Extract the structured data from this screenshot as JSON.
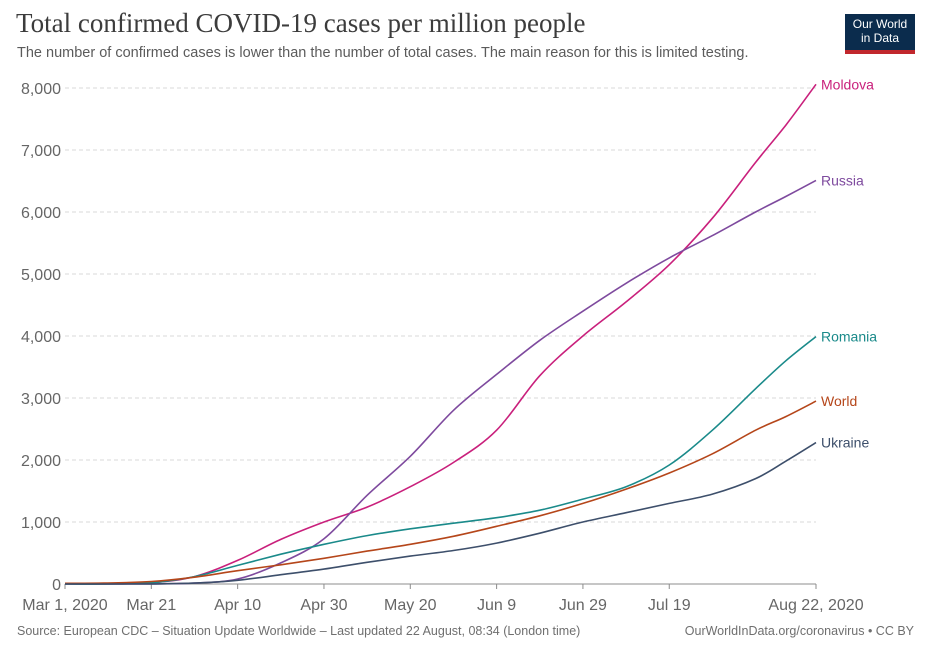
{
  "header": {
    "title": "Total confirmed COVID-19 cases per million people",
    "subtitle": "The number of confirmed cases is lower than the number of total cases. The main reason for this is limited testing.",
    "logo_line1": "Our World",
    "logo_line2": "in Data"
  },
  "footer": {
    "source": "Source: European CDC – Situation Update Worldwide – Last updated 22 August, 08:34 (London time)",
    "credit": "OurWorldInData.org/coronavirus • CC BY"
  },
  "colors": {
    "Moldova": "#c9207c",
    "Russia": "#7e4a9e",
    "Romania": "#1a8a8a",
    "World": "#b5461a",
    "Ukraine": "#3d4f6b",
    "grid": "#d9d9d9",
    "axis": "#666666"
  },
  "chart_data": {
    "type": "line",
    "xlabel": "",
    "ylabel": "",
    "ylim": [
      0,
      8000
    ],
    "xlim": [
      "2020-03-01",
      "2020-08-22"
    ],
    "grid": "horizontal dashed",
    "yticks": [
      0,
      1000,
      2000,
      3000,
      4000,
      5000,
      6000,
      7000,
      8000
    ],
    "ytick_labels": [
      "0",
      "1,000",
      "2,000",
      "3,000",
      "4,000",
      "5,000",
      "6,000",
      "7,000",
      "8,000"
    ],
    "xticks": [
      "2020-03-01",
      "2020-03-21",
      "2020-04-10",
      "2020-04-30",
      "2020-05-20",
      "2020-06-09",
      "2020-06-29",
      "2020-07-19",
      "2020-08-22"
    ],
    "xtick_labels": [
      "Mar 1, 2020",
      "Mar 21",
      "Apr 10",
      "Apr 30",
      "May 20",
      "Jun 9",
      "Jun 29",
      "Jul 19",
      "Aug 22, 2020"
    ],
    "legend": "line-end labels",
    "series": [
      {
        "name": "Moldova",
        "x": [
          "2020-03-01",
          "2020-03-10",
          "2020-03-21",
          "2020-03-31",
          "2020-04-10",
          "2020-04-20",
          "2020-04-30",
          "2020-05-10",
          "2020-05-20",
          "2020-05-30",
          "2020-06-09",
          "2020-06-19",
          "2020-06-29",
          "2020-07-09",
          "2020-07-19",
          "2020-07-29",
          "2020-08-08",
          "2020-08-15",
          "2020-08-22"
        ],
        "values": [
          0,
          2,
          20,
          120,
          380,
          720,
          1000,
          1240,
          1570,
          1960,
          2480,
          3360,
          4000,
          4550,
          5150,
          5900,
          6800,
          7400,
          8060
        ]
      },
      {
        "name": "Russia",
        "x": [
          "2020-03-01",
          "2020-03-10",
          "2020-03-21",
          "2020-03-31",
          "2020-04-10",
          "2020-04-20",
          "2020-04-30",
          "2020-05-10",
          "2020-05-20",
          "2020-05-30",
          "2020-06-09",
          "2020-06-19",
          "2020-06-29",
          "2020-07-09",
          "2020-07-19",
          "2020-07-29",
          "2020-08-08",
          "2020-08-15",
          "2020-08-22"
        ],
        "values": [
          0,
          0,
          2,
          15,
          80,
          340,
          730,
          1430,
          2060,
          2800,
          3380,
          3930,
          4400,
          4850,
          5260,
          5620,
          6000,
          6250,
          6510
        ]
      },
      {
        "name": "Romania",
        "x": [
          "2020-03-01",
          "2020-03-10",
          "2020-03-21",
          "2020-03-31",
          "2020-04-10",
          "2020-04-20",
          "2020-04-30",
          "2020-05-10",
          "2020-05-20",
          "2020-05-30",
          "2020-06-09",
          "2020-06-19",
          "2020-06-29",
          "2020-07-09",
          "2020-07-19",
          "2020-07-29",
          "2020-08-08",
          "2020-08-15",
          "2020-08-22"
        ],
        "values": [
          0,
          2,
          20,
          120,
          300,
          480,
          640,
          780,
          890,
          980,
          1070,
          1190,
          1370,
          1570,
          1920,
          2480,
          3150,
          3600,
          3990
        ]
      },
      {
        "name": "World",
        "x": [
          "2020-03-01",
          "2020-03-10",
          "2020-03-21",
          "2020-03-31",
          "2020-04-10",
          "2020-04-20",
          "2020-04-30",
          "2020-05-10",
          "2020-05-20",
          "2020-05-30",
          "2020-06-09",
          "2020-06-19",
          "2020-06-29",
          "2020-07-09",
          "2020-07-19",
          "2020-07-29",
          "2020-08-08",
          "2020-08-15",
          "2020-08-22"
        ],
        "values": [
          11,
          15,
          40,
          110,
          215,
          310,
          415,
          530,
          640,
          770,
          930,
          1100,
          1300,
          1530,
          1790,
          2100,
          2480,
          2700,
          2950
        ]
      },
      {
        "name": "Ukraine",
        "x": [
          "2020-03-01",
          "2020-03-10",
          "2020-03-21",
          "2020-03-31",
          "2020-04-10",
          "2020-04-20",
          "2020-04-30",
          "2020-05-10",
          "2020-05-20",
          "2020-05-30",
          "2020-06-09",
          "2020-06-19",
          "2020-06-29",
          "2020-07-09",
          "2020-07-19",
          "2020-07-29",
          "2020-08-08",
          "2020-08-15",
          "2020-08-22"
        ],
        "values": [
          0,
          0,
          2,
          15,
          60,
          150,
          240,
          350,
          450,
          540,
          660,
          820,
          1000,
          1150,
          1300,
          1450,
          1700,
          1980,
          2280
        ]
      }
    ]
  }
}
